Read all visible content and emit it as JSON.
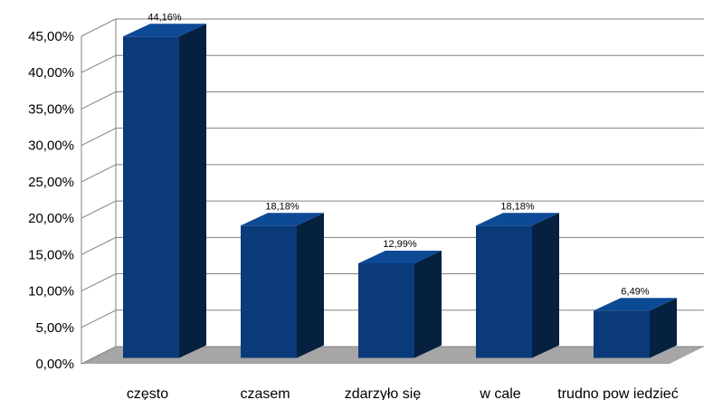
{
  "chart_data": {
    "type": "bar",
    "categories": [
      "często",
      "czasem",
      "zdarzyło się",
      "w cale",
      "trudno pow iedzieć"
    ],
    "values": [
      44.16,
      18.18,
      12.99,
      18.18,
      6.49
    ],
    "data_labels": [
      "44,16%",
      "18,18%",
      "12,99%",
      "18,18%",
      "6,49%"
    ],
    "ylim": [
      0,
      45
    ],
    "yticks": [
      0,
      5,
      10,
      15,
      20,
      25,
      30,
      35,
      40,
      45
    ],
    "ytick_labels": [
      "0,00%",
      "5,00%",
      "10,00%",
      "15,00%",
      "20,00%",
      "25,00%",
      "30,00%",
      "35,00%",
      "40,00%",
      "45,00%"
    ],
    "title": "",
    "xlabel": "",
    "ylabel": "",
    "grid": true,
    "legend": "none",
    "style": "3d",
    "colors": {
      "bar_front": "#0a3a7a",
      "bar_side": "#06203f",
      "bar_top": "#0d4a96",
      "floor": "#a6a6a6",
      "grid": "#808080"
    }
  }
}
